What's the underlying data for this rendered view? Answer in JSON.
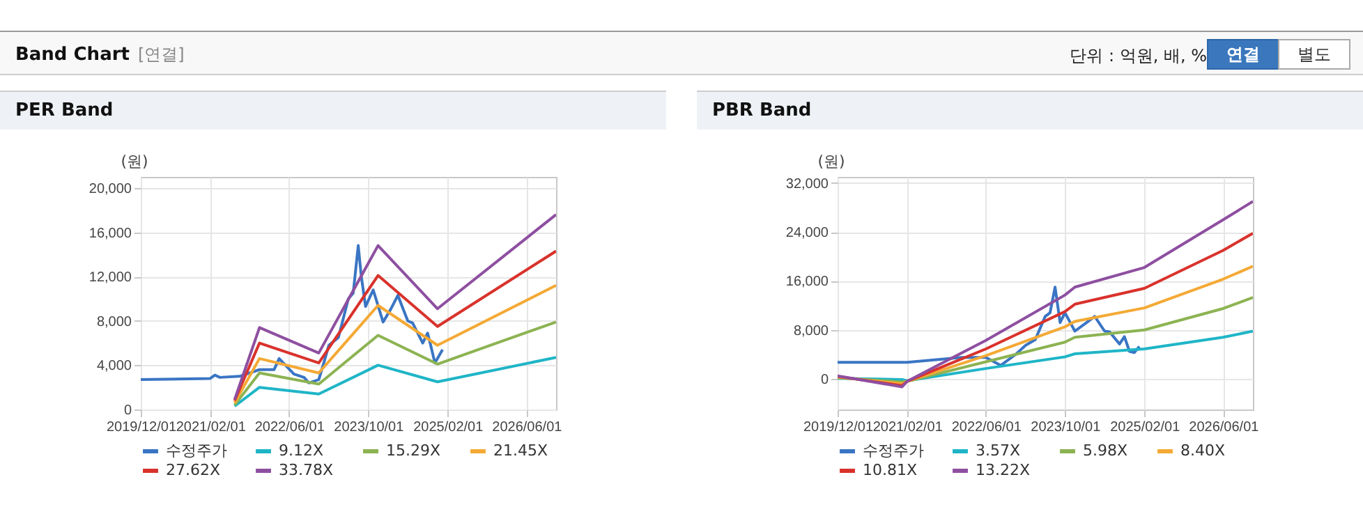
{
  "chart_data": [
    {
      "type": "other",
      "title": "Band Chart",
      "annotations": [
        "[연결]",
        "단위 : 억원, 배, %",
        "연결",
        "별도"
      ]
    },
    {
      "type": "line",
      "title": "PER Band",
      "ylabel": "(원)",
      "grid": true,
      "legend": "bottom",
      "xlim": [
        "2019-12-01",
        "2026-12-01"
      ],
      "xticks": [
        {
          "value": "2019-12-01",
          "label": "2019/12/01"
        },
        {
          "value": "2021-02-01",
          "label": "2021/02/01"
        },
        {
          "value": "2022-06-01",
          "label": "2022/06/01"
        },
        {
          "value": "2023-10-01",
          "label": "2023/10/01"
        },
        {
          "value": "2025-02-01",
          "label": "2025/02/01"
        },
        {
          "value": "2026-06-01",
          "label": "2026/06/01"
        }
      ],
      "ylim": [
        0,
        21000
      ],
      "yticks": [
        0,
        {
          "value": 4000,
          "label": "4,000"
        },
        {
          "value": 8000,
          "label": "8,000"
        },
        {
          "value": 12000,
          "label": "12,000"
        },
        {
          "value": 16000,
          "label": "16,000"
        },
        {
          "value": 20000,
          "label": "20,000"
        }
      ],
      "series": [
        {
          "name": "수정주가",
          "color": "#3a75c4",
          "x": [
            "2019-12-01",
            "2021-02-01",
            "2021-03-01",
            "2021-04-01",
            "2021-08-01",
            "2021-12-01",
            "2022-03-01",
            "2022-04-01",
            "2022-07-01",
            "2022-09-01",
            "2022-10-01",
            "2022-12-01",
            "2023-01-01",
            "2023-02-01",
            "2023-04-01",
            "2023-06-01",
            "2023-07-01",
            "2023-08-01",
            "2023-08-20",
            "2023-09-15",
            "2023-11-01",
            "2024-01-01",
            "2024-02-15",
            "2024-04-01",
            "2024-06-01",
            "2024-07-01",
            "2024-09-01",
            "2024-10-01",
            "2024-10-20",
            "2024-11-15",
            "2025-01-01"
          ],
          "values": [
            2700,
            2800,
            3100,
            2900,
            3000,
            3600,
            3600,
            4600,
            3200,
            2900,
            2400,
            2700,
            4200,
            5800,
            6500,
            10000,
            10500,
            14800,
            12000,
            9300,
            10800,
            7900,
            9000,
            10300,
            8000,
            7800,
            6000,
            6900,
            5800,
            4200,
            5400
          ]
        },
        {
          "name": "9.12X",
          "color": "#1fb5c7",
          "x": [
            "2021-07-01",
            "2021-12-01",
            "2022-12-01",
            "2023-12-01",
            "2024-12-01",
            "2026-12-01"
          ],
          "values": [
            300,
            2000,
            1400,
            4000,
            2500,
            4700
          ]
        },
        {
          "name": "15.29X",
          "color": "#8cb352",
          "x": [
            "2021-07-01",
            "2021-12-01",
            "2022-12-01",
            "2023-12-01",
            "2024-12-01",
            "2026-12-01"
          ],
          "values": [
            400,
            3300,
            2300,
            6700,
            4100,
            7900
          ]
        },
        {
          "name": "21.45X",
          "color": "#f4a935",
          "x": [
            "2021-07-01",
            "2021-12-01",
            "2022-12-01",
            "2023-12-01",
            "2024-12-01",
            "2026-12-01"
          ],
          "values": [
            600,
            4600,
            3300,
            9400,
            5800,
            11200
          ]
        },
        {
          "name": "27.62X",
          "color": "#d9322c",
          "x": [
            "2021-07-01",
            "2021-12-01",
            "2022-12-01",
            "2023-12-01",
            "2024-12-01",
            "2026-12-01"
          ],
          "values": [
            800,
            6000,
            4200,
            12100,
            7500,
            14300
          ]
        },
        {
          "name": "33.78X",
          "color": "#8e4fa0",
          "x": [
            "2021-07-01",
            "2021-12-01",
            "2022-12-01",
            "2023-12-01",
            "2024-12-01",
            "2026-12-01"
          ],
          "values": [
            900,
            7400,
            5100,
            14800,
            9100,
            17600
          ]
        }
      ]
    },
    {
      "type": "line",
      "title": "PBR Band",
      "ylabel": "(원)",
      "grid": true,
      "legend": "bottom",
      "xlim": [
        "2019-12-01",
        "2026-12-01"
      ],
      "xticks": [
        {
          "value": "2019-12-01",
          "label": "2019/12/01"
        },
        {
          "value": "2021-02-01",
          "label": "2021/02/01"
        },
        {
          "value": "2022-06-01",
          "label": "2022/06/01"
        },
        {
          "value": "2023-10-01",
          "label": "2023/10/01"
        },
        {
          "value": "2025-02-01",
          "label": "2025/02/01"
        },
        {
          "value": "2026-06-01",
          "label": "2026/06/01"
        }
      ],
      "ylim": [
        -5000,
        33000
      ],
      "yticks": [
        0,
        {
          "value": 8000,
          "label": "8,000"
        },
        {
          "value": 16000,
          "label": "16,000"
        },
        {
          "value": 24000,
          "label": "24,000"
        },
        {
          "value": 32000,
          "label": "32,000"
        }
      ],
      "series": [
        {
          "name": "수정주가",
          "color": "#3a75c4",
          "x": [
            "2019-12-01",
            "2021-02-01",
            "2022-01-01",
            "2022-06-01",
            "2022-09-01",
            "2022-12-01",
            "2023-02-01",
            "2023-04-01",
            "2023-06-01",
            "2023-07-01",
            "2023-08-01",
            "2023-09-01",
            "2023-10-01",
            "2023-12-01",
            "2024-02-01",
            "2024-04-01",
            "2024-06-01",
            "2024-07-01",
            "2024-09-01",
            "2024-10-01",
            "2024-11-01",
            "2024-12-01",
            "2025-01-01"
          ],
          "values": [
            2700,
            2700,
            3500,
            3500,
            2200,
            4000,
            5500,
            6400,
            10200,
            10800,
            15000,
            9200,
            10800,
            7800,
            9000,
            10200,
            7800,
            7700,
            5700,
            6900,
            4500,
            4300,
            5300
          ]
        },
        {
          "name": "3.57X",
          "color": "#1fb5c7",
          "x": [
            "2019-12-01",
            "2021-01-01",
            "2021-02-01",
            "2022-06-01",
            "2023-10-01",
            "2023-12-01",
            "2025-02-01",
            "2026-06-01",
            "2026-12-01"
          ],
          "values": [
            100,
            -100,
            -300,
            1700,
            3600,
            4100,
            4900,
            6800,
            7800
          ]
        },
        {
          "name": "5.98X",
          "color": "#8cb352",
          "x": [
            "2019-12-01",
            "2021-01-01",
            "2021-02-01",
            "2022-06-01",
            "2023-10-01",
            "2023-12-01",
            "2025-02-01",
            "2026-06-01",
            "2026-12-01"
          ],
          "values": [
            200,
            -500,
            -400,
            2800,
            6000,
            6800,
            8000,
            11500,
            13300
          ]
        },
        {
          "name": "8.40X",
          "color": "#f4a935",
          "x": [
            "2019-12-01",
            "2021-01-01",
            "2021-02-01",
            "2022-06-01",
            "2023-10-01",
            "2023-12-01",
            "2025-02-01",
            "2026-06-01",
            "2026-12-01"
          ],
          "values": [
            300,
            -800,
            -400,
            3800,
            8500,
            9400,
            11600,
            16300,
            18400
          ]
        },
        {
          "name": "10.81X",
          "color": "#d9322c",
          "x": [
            "2019-12-01",
            "2021-01-01",
            "2021-02-01",
            "2022-06-01",
            "2023-10-01",
            "2023-12-01",
            "2025-02-01",
            "2026-06-01",
            "2026-12-01"
          ],
          "values": [
            400,
            -1100,
            -400,
            4900,
            11000,
            12200,
            14800,
            21000,
            23800
          ]
        },
        {
          "name": "13.22X",
          "color": "#8e4fa0",
          "x": [
            "2019-12-01",
            "2021-01-01",
            "2021-02-01",
            "2022-06-01",
            "2023-10-01",
            "2023-12-01",
            "2025-02-01",
            "2026-06-01",
            "2026-12-01"
          ],
          "values": [
            500,
            -1300,
            -400,
            6300,
            13700,
            15000,
            18200,
            26000,
            29000
          ]
        }
      ]
    }
  ]
}
